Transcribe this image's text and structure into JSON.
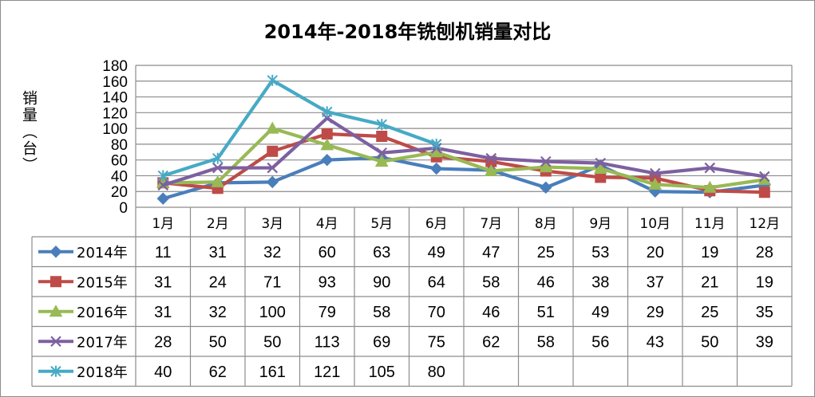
{
  "chart_data": {
    "type": "line",
    "title": "2014年-2018年铣刨机销量对比",
    "ylabel": "销量（台）",
    "ylim": [
      0,
      180
    ],
    "yticks": [
      0,
      20,
      40,
      60,
      80,
      100,
      120,
      140,
      160,
      180
    ],
    "grid": true,
    "legend": "data-table",
    "categories": [
      "1月",
      "2月",
      "3月",
      "4月",
      "5月",
      "6月",
      "7月",
      "8月",
      "9月",
      "10月",
      "11月",
      "12月"
    ],
    "series": [
      {
        "name": "2014年",
        "color": "#4a7ebb",
        "marker": "diamond",
        "values": [
          11,
          31,
          32,
          60,
          63,
          49,
          47,
          25,
          53,
          20,
          19,
          28
        ]
      },
      {
        "name": "2015年",
        "color": "#be4b48",
        "marker": "square",
        "values": [
          31,
          24,
          71,
          93,
          90,
          64,
          58,
          46,
          38,
          37,
          21,
          19
        ]
      },
      {
        "name": "2016年",
        "color": "#98b954",
        "marker": "triangle",
        "values": [
          31,
          32,
          100,
          79,
          58,
          70,
          46,
          51,
          49,
          29,
          25,
          35
        ]
      },
      {
        "name": "2017年",
        "color": "#7d60a0",
        "marker": "x",
        "values": [
          28,
          50,
          50,
          113,
          69,
          75,
          62,
          58,
          56,
          43,
          50,
          39
        ]
      },
      {
        "name": "2018年",
        "color": "#46aac5",
        "marker": "star",
        "values": [
          40,
          62,
          161,
          121,
          105,
          80,
          null,
          null,
          null,
          null,
          null,
          null
        ]
      }
    ]
  }
}
